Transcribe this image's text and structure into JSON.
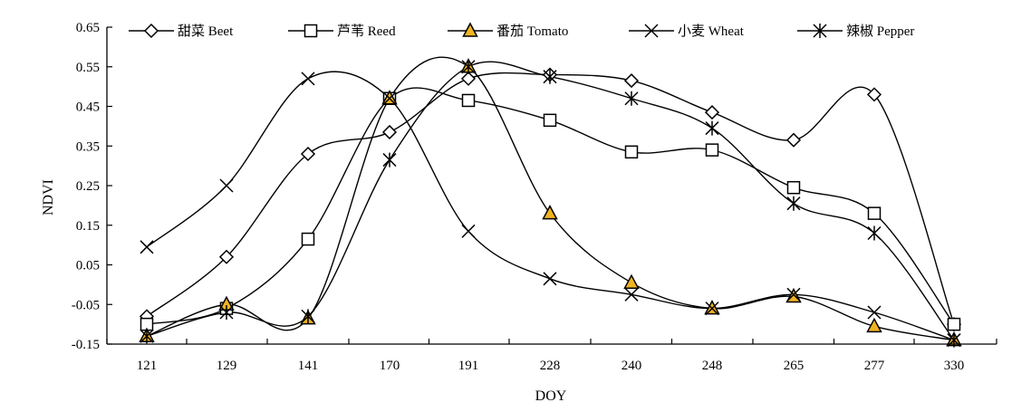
{
  "chart_data": {
    "type": "line",
    "xlabel": "DOY",
    "ylabel": "NDVI",
    "categories": [
      "121",
      "129",
      "141",
      "170",
      "191",
      "228",
      "240",
      "248",
      "265",
      "277",
      "330"
    ],
    "ylim": [
      -0.15,
      0.65
    ],
    "yticks": [
      "-0.15",
      "-0.05",
      "0.05",
      "0.15",
      "0.25",
      "0.35",
      "0.45",
      "0.55",
      "0.65"
    ],
    "legend_position": "top",
    "grid": false,
    "series": [
      {
        "name": "甜菜 Beet",
        "marker": "diamond",
        "fill": "#ffffff",
        "values": [
          -0.08,
          0.07,
          0.33,
          0.385,
          0.52,
          0.53,
          0.515,
          0.435,
          0.365,
          0.48,
          -0.1
        ]
      },
      {
        "name": "芦苇 Reed",
        "marker": "square",
        "fill": "#ffffff",
        "values": [
          -0.1,
          -0.06,
          0.115,
          0.47,
          0.465,
          0.415,
          0.335,
          0.34,
          0.245,
          0.18,
          -0.1
        ]
      },
      {
        "name": "番茄 Tomato",
        "marker": "triangle",
        "fill": "#f0b323",
        "values": [
          -0.13,
          -0.05,
          -0.085,
          0.47,
          0.55,
          0.18,
          0.005,
          -0.06,
          -0.03,
          -0.105,
          -0.14
        ]
      },
      {
        "name": "小麦 Wheat",
        "marker": "x",
        "fill": "none",
        "values": [
          0.095,
          0.25,
          0.52,
          0.47,
          0.135,
          0.015,
          -0.025,
          -0.06,
          -0.025,
          -0.07,
          -0.14
        ]
      },
      {
        "name": "辣椒 Pepper",
        "marker": "asterisk",
        "fill": "none",
        "values": [
          -0.13,
          -0.07,
          -0.08,
          0.315,
          0.55,
          0.525,
          0.47,
          0.395,
          0.205,
          0.13,
          -0.14
        ]
      }
    ]
  }
}
